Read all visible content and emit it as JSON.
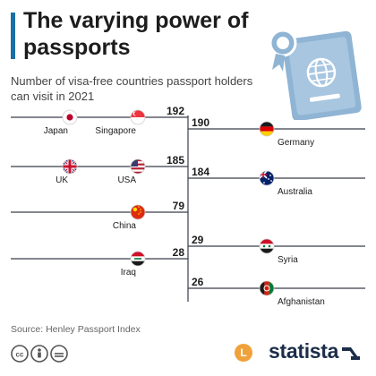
{
  "header": {
    "title": "The varying power of passports",
    "subtitle": "Number of visa-free countries passport holders can visit in 2021"
  },
  "colors": {
    "accent": "#1a6fa5",
    "line": "#3a3f4a",
    "text": "#1c1c1c",
    "illustration": "#8fb4d4"
  },
  "icons": {
    "illustration": "passport-icon",
    "license": "creative-commons-icon",
    "brand": "statista-icon"
  },
  "chart_data": {
    "type": "bar",
    "title": "The varying power of passports",
    "subtitle": "Number of visa-free countries passport holders can visit in 2021",
    "categories": [
      "Japan",
      "Singapore",
      "Germany",
      "UK",
      "USA",
      "Australia",
      "China",
      "Syria",
      "Iraq",
      "Afghanistan"
    ],
    "values": [
      192,
      192,
      190,
      185,
      185,
      184,
      79,
      29,
      28,
      26
    ],
    "grouping": [
      {
        "value": 192,
        "side": "left",
        "countries": [
          "Japan",
          "Singapore"
        ],
        "flags": [
          "flag-japan",
          "flag-singapore"
        ]
      },
      {
        "value": 190,
        "side": "right",
        "countries": [
          "Germany"
        ],
        "flags": [
          "flag-germany"
        ]
      },
      {
        "value": 185,
        "side": "left",
        "countries": [
          "UK",
          "USA"
        ],
        "flags": [
          "flag-uk",
          "flag-usa"
        ]
      },
      {
        "value": 184,
        "side": "right",
        "countries": [
          "Australia"
        ],
        "flags": [
          "flag-australia"
        ]
      },
      {
        "value": 79,
        "side": "left",
        "countries": [
          "China"
        ],
        "flags": [
          "flag-china"
        ]
      },
      {
        "value": 29,
        "side": "right",
        "countries": [
          "Syria"
        ],
        "flags": [
          "flag-syria"
        ]
      },
      {
        "value": 28,
        "side": "left",
        "countries": [
          "Iraq"
        ],
        "flags": [
          "flag-iraq"
        ]
      },
      {
        "value": 26,
        "side": "right",
        "countries": [
          "Afghanistan"
        ],
        "flags": [
          "flag-afghanistan"
        ]
      }
    ]
  },
  "footer": {
    "source": "Source: Henley Passport Index",
    "brand": "statista",
    "brand_initial": "L"
  }
}
